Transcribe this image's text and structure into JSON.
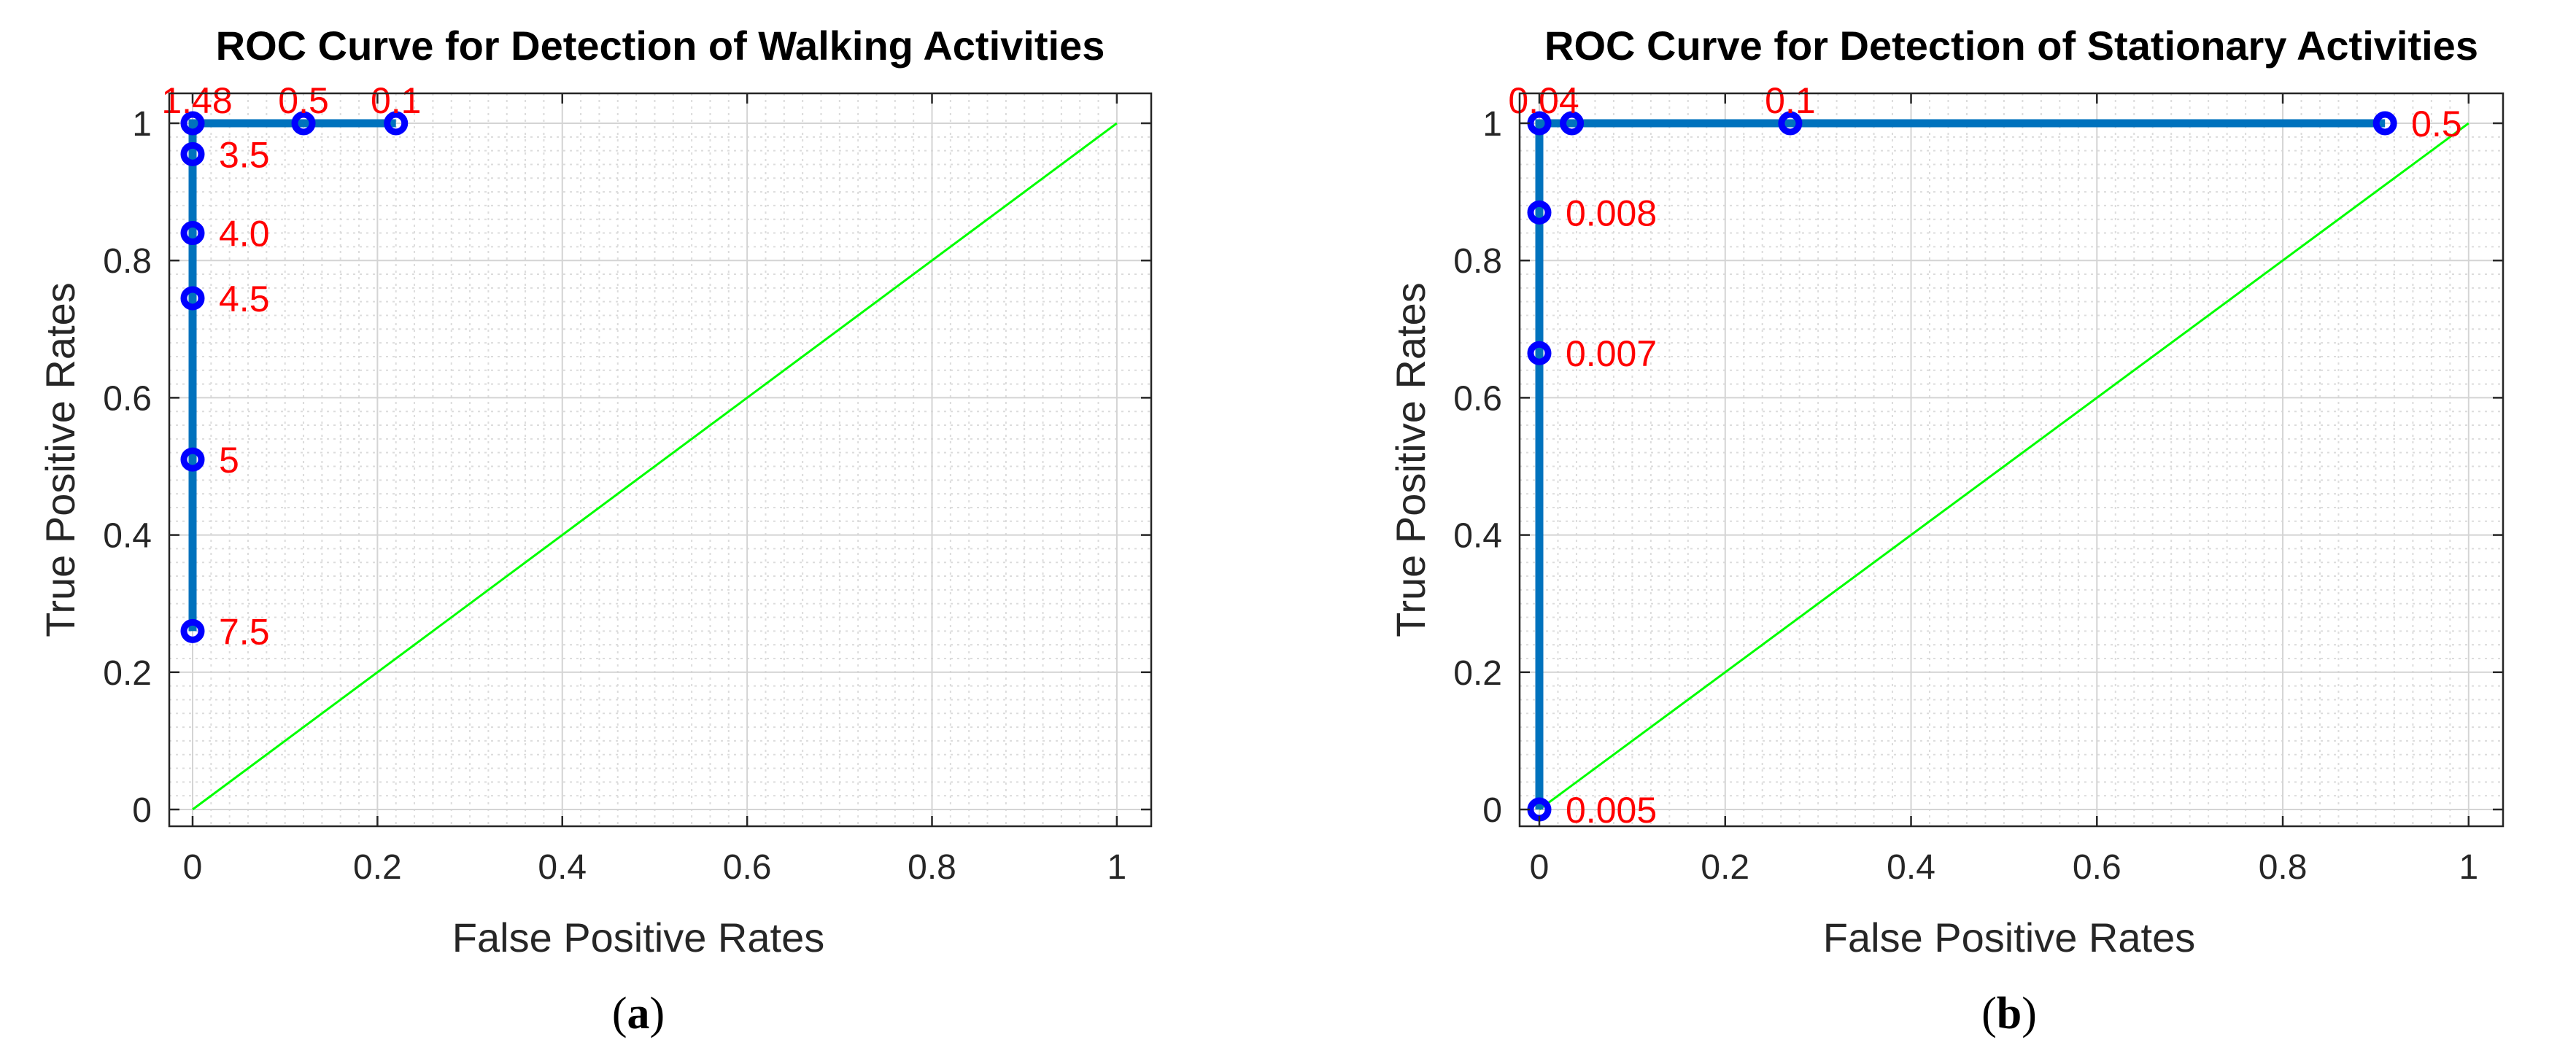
{
  "chart_data": [
    {
      "type": "line",
      "title": "ROC Curve for Detection of Walking Activities",
      "xlabel": "False Positive Rates",
      "ylabel": "True Positive Rates",
      "xlim": [
        0,
        1
      ],
      "ylim": [
        0,
        1
      ],
      "xticks": [
        "0",
        "0.2",
        "0.4",
        "0.6",
        "0.8",
        "1"
      ],
      "yticks": [
        "0",
        "0.2",
        "0.4",
        "0.6",
        "0.8",
        "1"
      ],
      "grid": true,
      "caption_letter": "a",
      "roc_color": "#0072bd",
      "marker_color": "#0000ff",
      "label_color": "#ff0000",
      "chance_color": "#00ff00",
      "chance_line": [
        [
          0,
          0
        ],
        [
          1,
          1
        ]
      ],
      "series": [
        {
          "name": "ROC",
          "points": [
            {
              "x": 0,
              "y": 0.26,
              "label": "7.5"
            },
            {
              "x": 0,
              "y": 0.51,
              "label": "5"
            },
            {
              "x": 0,
              "y": 0.745,
              "label": "4.5"
            },
            {
              "x": 0,
              "y": 0.84,
              "label": "4.0"
            },
            {
              "x": 0,
              "y": 0.955,
              "label": "3.5"
            },
            {
              "x": 0,
              "y": 1.0,
              "label": "1.48"
            },
            {
              "x": 0.12,
              "y": 1.0,
              "label": "0.5"
            },
            {
              "x": 0.22,
              "y": 1.0,
              "label": "0.1"
            }
          ]
        }
      ]
    },
    {
      "type": "line",
      "title": "ROC Curve for Detection of Stationary Activities",
      "xlabel": "False Positive Rates",
      "ylabel": "True Positive Rates",
      "xlim": [
        0,
        1
      ],
      "ylim": [
        0,
        1
      ],
      "xticks": [
        "0",
        "0.2",
        "0.4",
        "0.6",
        "0.8",
        "1"
      ],
      "yticks": [
        "0",
        "0.2",
        "0.4",
        "0.6",
        "0.8",
        "1"
      ],
      "grid": true,
      "caption_letter": "b",
      "roc_color": "#0072bd",
      "marker_color": "#0000ff",
      "label_color": "#ff0000",
      "chance_color": "#00ff00",
      "chance_line": [
        [
          0,
          0
        ],
        [
          1,
          1
        ]
      ],
      "series": [
        {
          "name": "ROC",
          "points": [
            {
              "x": 0,
              "y": 0.0,
              "label": "0.005"
            },
            {
              "x": 0,
              "y": 0.665,
              "label": "0.007"
            },
            {
              "x": 0,
              "y": 0.87,
              "label": "0.008"
            },
            {
              "x": 0,
              "y": 1.0,
              "label": "0.04"
            },
            {
              "x": 0.035,
              "y": 1.0,
              "label": ""
            },
            {
              "x": 0.27,
              "y": 1.0,
              "label": "0.1"
            },
            {
              "x": 0.91,
              "y": 1.0,
              "label": "0.5"
            }
          ]
        }
      ]
    }
  ]
}
